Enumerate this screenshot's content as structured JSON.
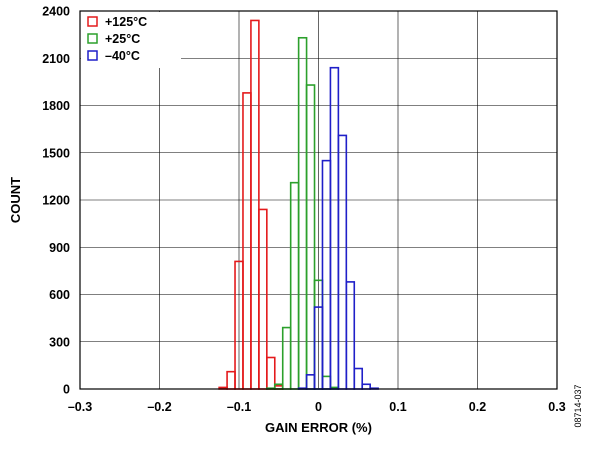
{
  "chart_data": {
    "type": "bar",
    "xlabel": "GAIN ERROR (%)",
    "ylabel": "COUNT",
    "xlim": [
      -0.3,
      0.3
    ],
    "ylim": [
      0,
      2400
    ],
    "x_ticks": [
      "–0.3",
      "–0.2",
      "–0.1",
      "0",
      "0.1",
      "0.2",
      "0.3"
    ],
    "x_tick_values": [
      -0.3,
      -0.2,
      -0.1,
      0,
      0.1,
      0.2,
      0.3
    ],
    "y_ticks": [
      "0",
      "300",
      "600",
      "900",
      "1200",
      "1500",
      "1800",
      "2100",
      "2400"
    ],
    "y_tick_values": [
      0,
      300,
      600,
      900,
      1200,
      1500,
      1800,
      2100,
      2400
    ],
    "grid": true,
    "legend_position": "top-left",
    "bin_width": 0.01,
    "series": [
      {
        "name": "+125°C",
        "color": "#e41a1c",
        "bins": [
          {
            "x": -0.12,
            "count": 10
          },
          {
            "x": -0.11,
            "count": 110
          },
          {
            "x": -0.1,
            "count": 810
          },
          {
            "x": -0.09,
            "count": 1880
          },
          {
            "x": -0.08,
            "count": 2340
          },
          {
            "x": -0.07,
            "count": 1140
          },
          {
            "x": -0.06,
            "count": 200
          },
          {
            "x": -0.05,
            "count": 20
          }
        ]
      },
      {
        "name": "+25°C",
        "color": "#2ca02c",
        "bins": [
          {
            "x": -0.06,
            "count": 5
          },
          {
            "x": -0.05,
            "count": 30
          },
          {
            "x": -0.04,
            "count": 390
          },
          {
            "x": -0.03,
            "count": 1310
          },
          {
            "x": -0.02,
            "count": 2230
          },
          {
            "x": -0.01,
            "count": 1930
          },
          {
            "x": 0.0,
            "count": 690
          },
          {
            "x": 0.01,
            "count": 80
          },
          {
            "x": 0.02,
            "count": 10
          }
        ]
      },
      {
        "name": "–40°C",
        "color": "#1f1fc8",
        "bins": [
          {
            "x": -0.02,
            "count": 5
          },
          {
            "x": -0.01,
            "count": 90
          },
          {
            "x": 0.0,
            "count": 520
          },
          {
            "x": 0.01,
            "count": 1450
          },
          {
            "x": 0.02,
            "count": 2040
          },
          {
            "x": 0.03,
            "count": 1610
          },
          {
            "x": 0.04,
            "count": 680
          },
          {
            "x": 0.05,
            "count": 130
          },
          {
            "x": 0.06,
            "count": 30
          },
          {
            "x": 0.07,
            "count": 5
          }
        ]
      }
    ],
    "figure_code": "08714-037"
  }
}
